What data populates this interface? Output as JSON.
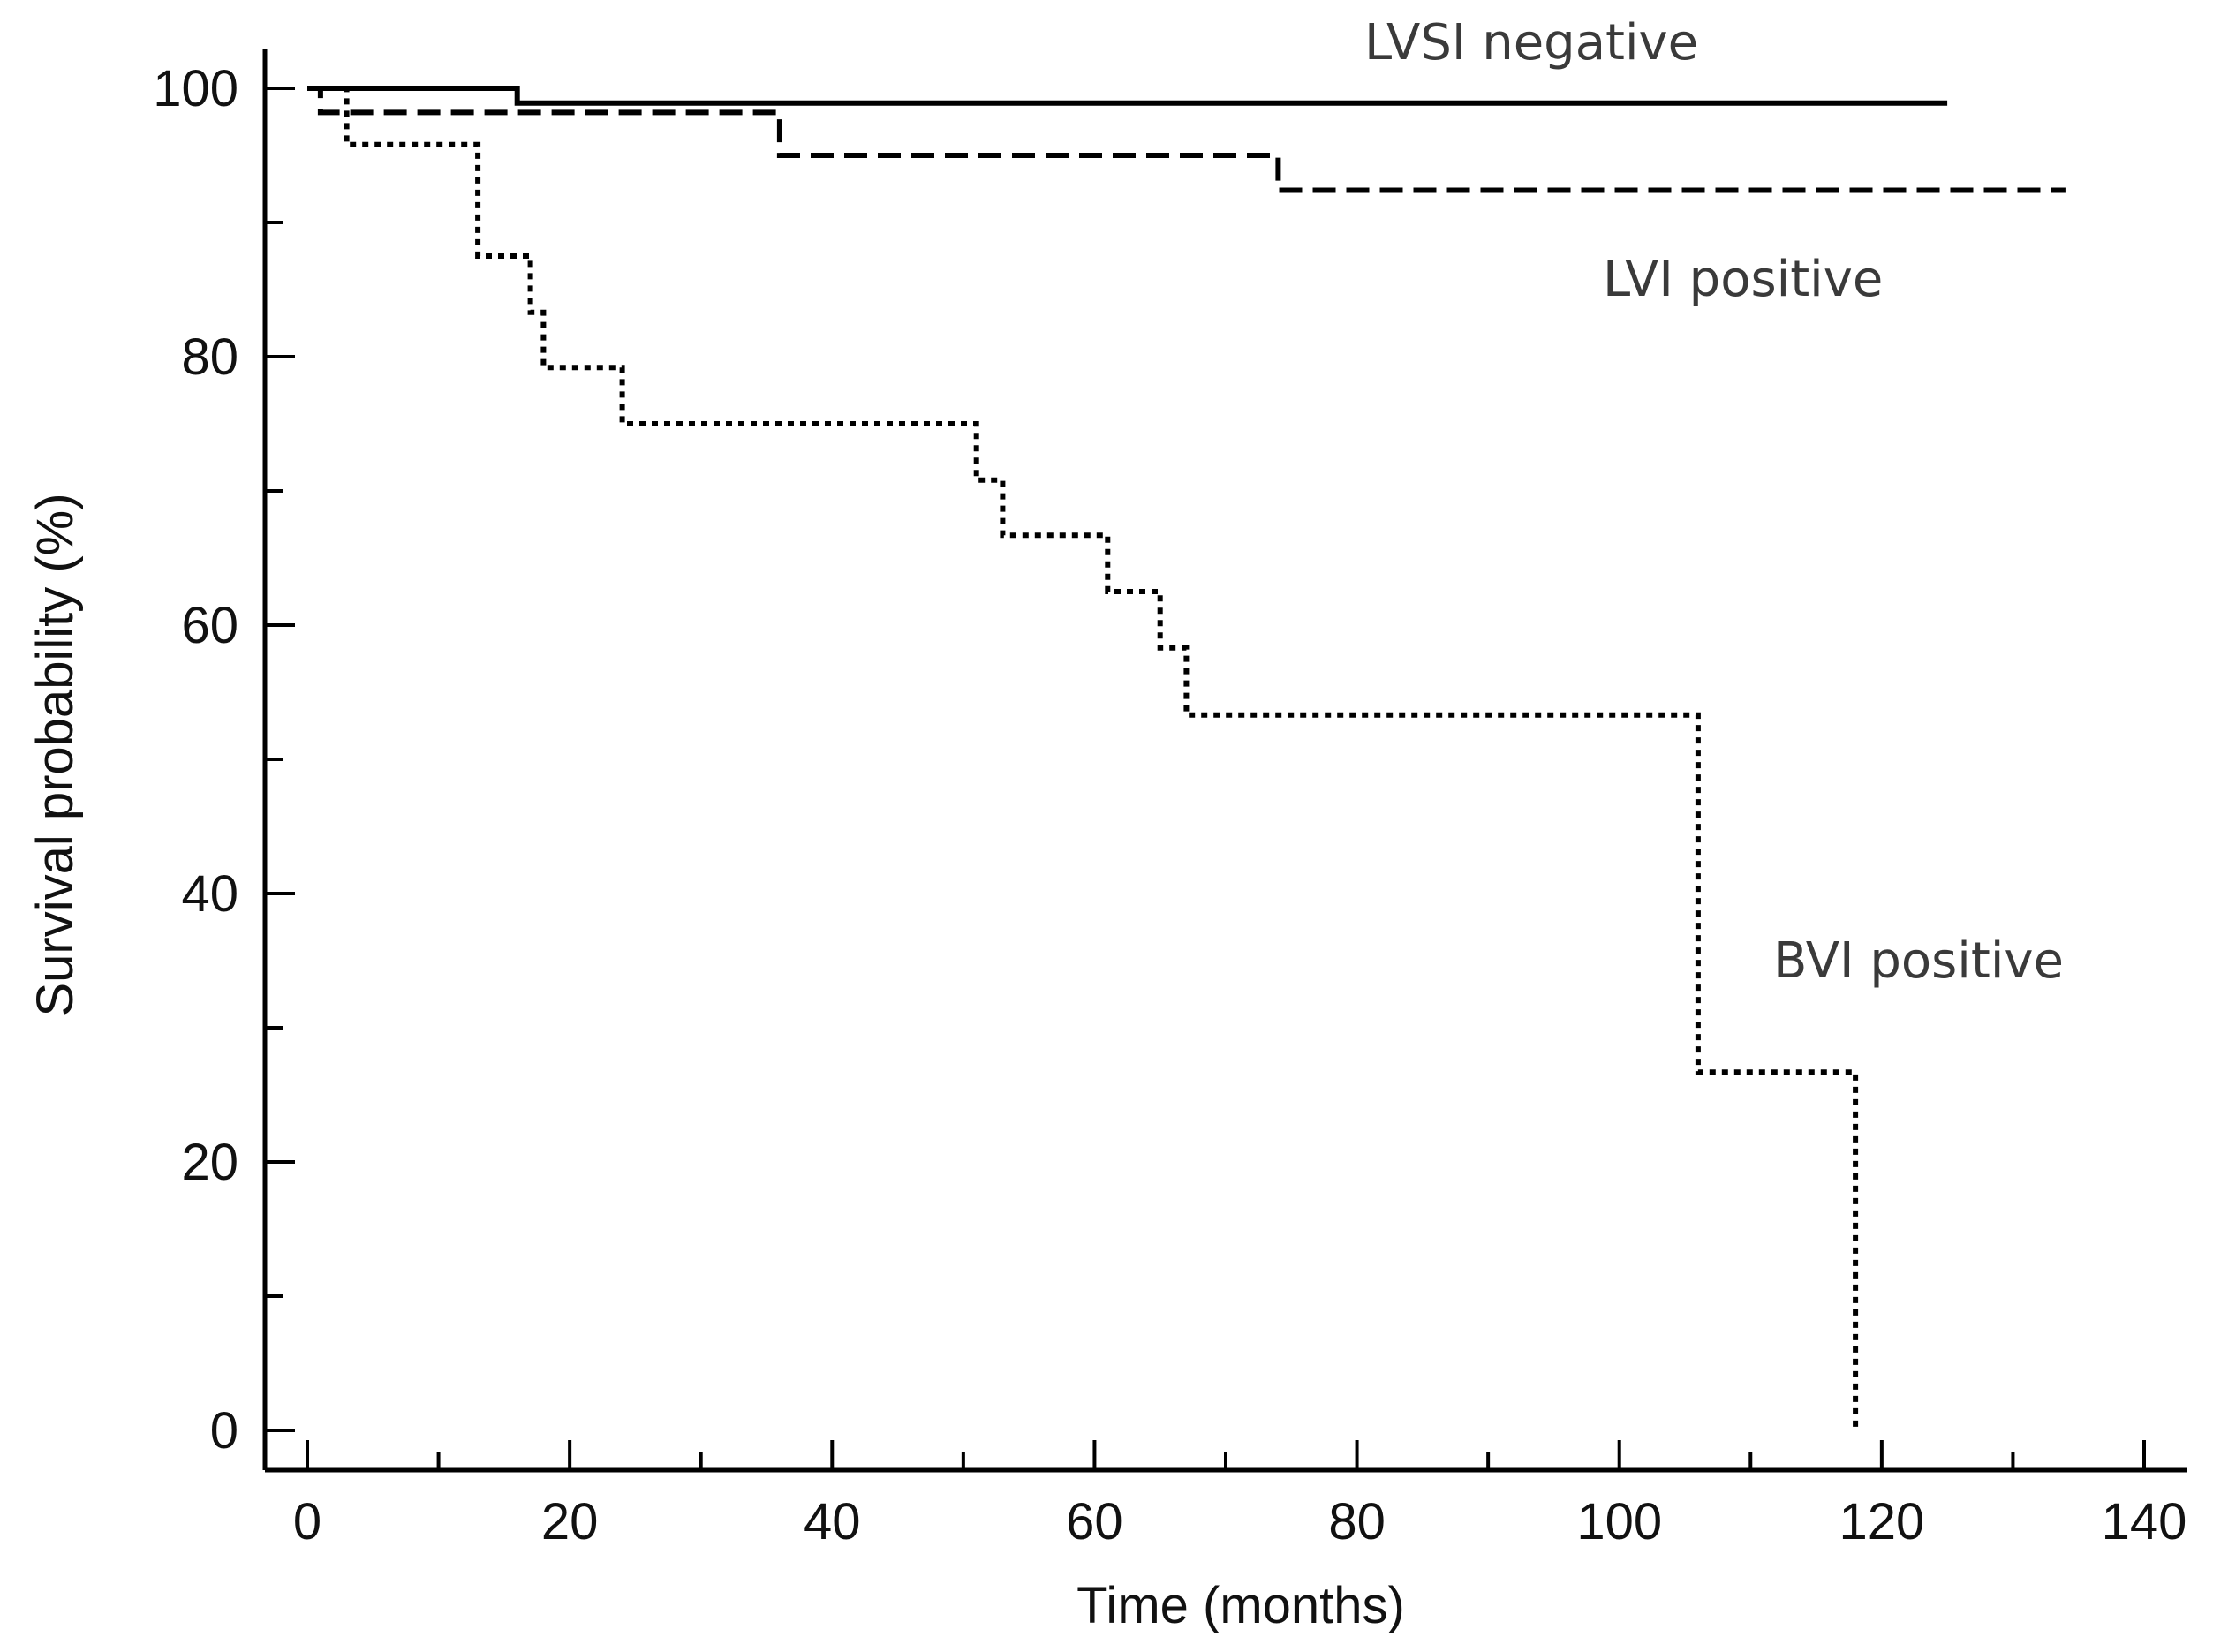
{
  "chart_data": {
    "type": "line",
    "title": "",
    "xlabel": "Time (months)",
    "ylabel": "Survival probability (%)",
    "xlim": [
      0,
      140
    ],
    "ylim": [
      0,
      100
    ],
    "x_ticks": [
      0,
      20,
      40,
      60,
      80,
      100,
      120,
      140
    ],
    "y_ticks": [
      0,
      20,
      40,
      60,
      80,
      100
    ],
    "grid": false,
    "legend": "none; series labelled directly on the plot",
    "series": [
      {
        "name": "LVSI negative",
        "style": "solid",
        "color": "#000000",
        "x": [
          0,
          16,
          16,
          125
        ],
        "y": [
          100,
          100,
          98.9,
          98.9
        ]
      },
      {
        "name": "LVI positive",
        "style": "dashed",
        "color": "#000000",
        "x": [
          0,
          1,
          1,
          36,
          36,
          74,
          74,
          134
        ],
        "y": [
          100,
          100,
          98.2,
          98.2,
          95,
          95,
          92.4,
          92.4
        ]
      },
      {
        "name": "BVI positive",
        "style": "dotted",
        "color": "#000000",
        "x": [
          0,
          3,
          3,
          13,
          13,
          17,
          17,
          18,
          18,
          24,
          24,
          51,
          51,
          53,
          53,
          61,
          61,
          65,
          65,
          67,
          67,
          106,
          106,
          118,
          118
        ],
        "y": [
          100,
          100,
          95.8,
          95.8,
          87.5,
          87.5,
          83.3,
          83.3,
          79.2,
          79.2,
          75,
          75,
          70.8,
          70.8,
          66.7,
          66.7,
          62.5,
          62.5,
          58.3,
          58.3,
          53.3,
          53.3,
          26.7,
          26.7,
          0
        ]
      }
    ]
  }
}
